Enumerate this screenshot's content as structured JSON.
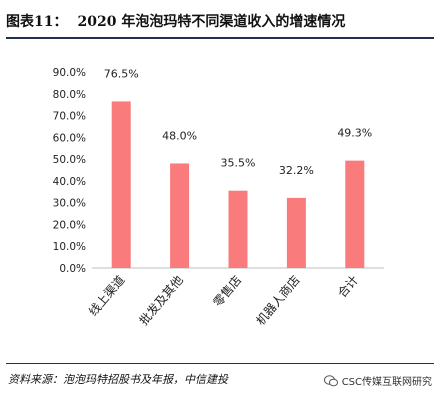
{
  "figure": {
    "number_label": "图表11：",
    "title": "2020 年泡泡玛特不同渠道收入的增速情况"
  },
  "chart_data": {
    "type": "bar",
    "title": "",
    "xlabel": "",
    "ylabel": "",
    "categories": [
      "线上渠道",
      "批发及其他",
      "零售店",
      "机器人商店",
      "合计"
    ],
    "values": [
      76.5,
      48.0,
      35.5,
      32.2,
      49.3
    ],
    "value_labels": [
      "76.5%",
      "48.0%",
      "35.5%",
      "32.2%",
      "49.3%"
    ],
    "ylim": [
      0,
      90
    ],
    "yticks": [
      0,
      10,
      20,
      30,
      40,
      50,
      60,
      70,
      80,
      90
    ],
    "ytick_labels": [
      "0.0%",
      "10.0%",
      "20.0%",
      "30.0%",
      "40.0%",
      "50.0%",
      "60.0%",
      "70.0%",
      "80.0%",
      "90.0%"
    ],
    "grid": false,
    "bar_color": "#f97b7b"
  },
  "footer": {
    "source": "资料来源：泡泡玛特招股书及年报，中信建投",
    "watermark": "CSC传媒互联网研究",
    "watermark_icon": "wechat-icon"
  }
}
